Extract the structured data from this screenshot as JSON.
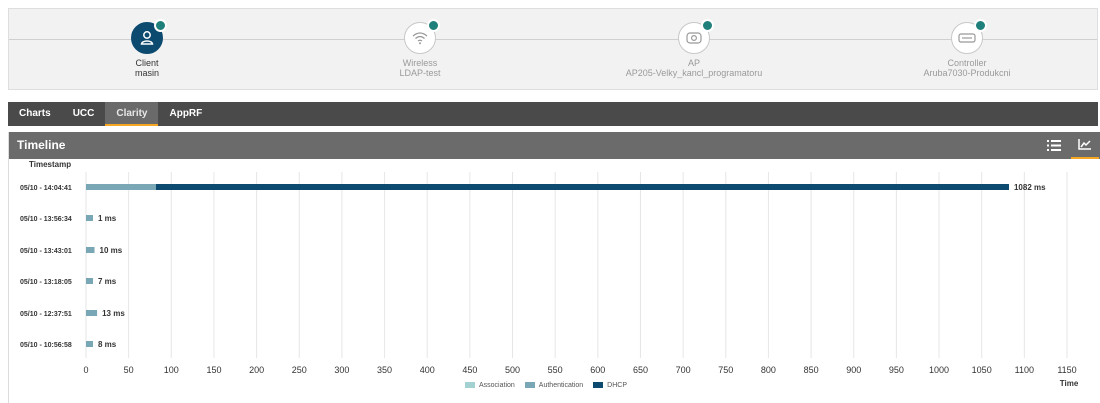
{
  "topology": {
    "nodes": [
      {
        "icon": "user-icon",
        "line1": "Client",
        "line2": "masin",
        "status_color": "#1f7f7a",
        "active": true
      },
      {
        "icon": "wifi-icon",
        "line1": "Wireless",
        "line2": "LDAP-test",
        "status_color": "#1f7f7a",
        "active": false
      },
      {
        "icon": "access-point-icon",
        "line1": "AP",
        "line2": "AP205-Velky_kancl_programatoru",
        "status_color": "#1f7f7a",
        "active": false
      },
      {
        "icon": "controller-icon",
        "line1": "Controller",
        "line2": "Aruba7030-Produkcni",
        "status_color": "#1f7f7a",
        "active": false
      }
    ]
  },
  "tabs": [
    {
      "label": "Charts",
      "active": false
    },
    {
      "label": "UCC",
      "active": false
    },
    {
      "label": "Clarity",
      "active": true
    },
    {
      "label": "AppRF",
      "active": false
    }
  ],
  "panel": {
    "title": "Timeline",
    "list_view_icon": "list-icon",
    "chart_view_icon": "line-chart-icon"
  },
  "colors": {
    "Association": "#a3d0d0",
    "Authentication": "#7aa7b5",
    "DHCP": "#0d4a70",
    "accent": "#f5a623"
  },
  "chart_data": {
    "type": "bar",
    "orientation": "horizontal",
    "stacked": true,
    "ylabel": "Timestamp",
    "xlabel": "Time",
    "xlim": [
      0,
      1150
    ],
    "xticks": [
      0,
      50,
      100,
      150,
      200,
      250,
      300,
      350,
      400,
      450,
      500,
      550,
      600,
      650,
      700,
      750,
      800,
      850,
      900,
      950,
      1000,
      1050,
      1100,
      1150
    ],
    "categories": [
      "05/10 - 14:04:41",
      "05/10 - 13:56:34",
      "05/10 - 13:43:01",
      "05/10 - 13:18:05",
      "05/10 - 12:37:51",
      "05/10 - 10:56:58"
    ],
    "series": [
      {
        "name": "Association",
        "values": [
          0,
          0,
          0,
          0,
          0,
          0
        ]
      },
      {
        "name": "Authentication",
        "values": [
          82,
          1,
          10,
          7,
          13,
          8
        ]
      },
      {
        "name": "DHCP",
        "values": [
          1000,
          0,
          0,
          0,
          0,
          0
        ]
      }
    ],
    "total_labels": [
      "1082 ms",
      "1 ms",
      "10 ms",
      "7 ms",
      "13 ms",
      "8 ms"
    ],
    "grid": true,
    "legend": "bottom-center"
  }
}
